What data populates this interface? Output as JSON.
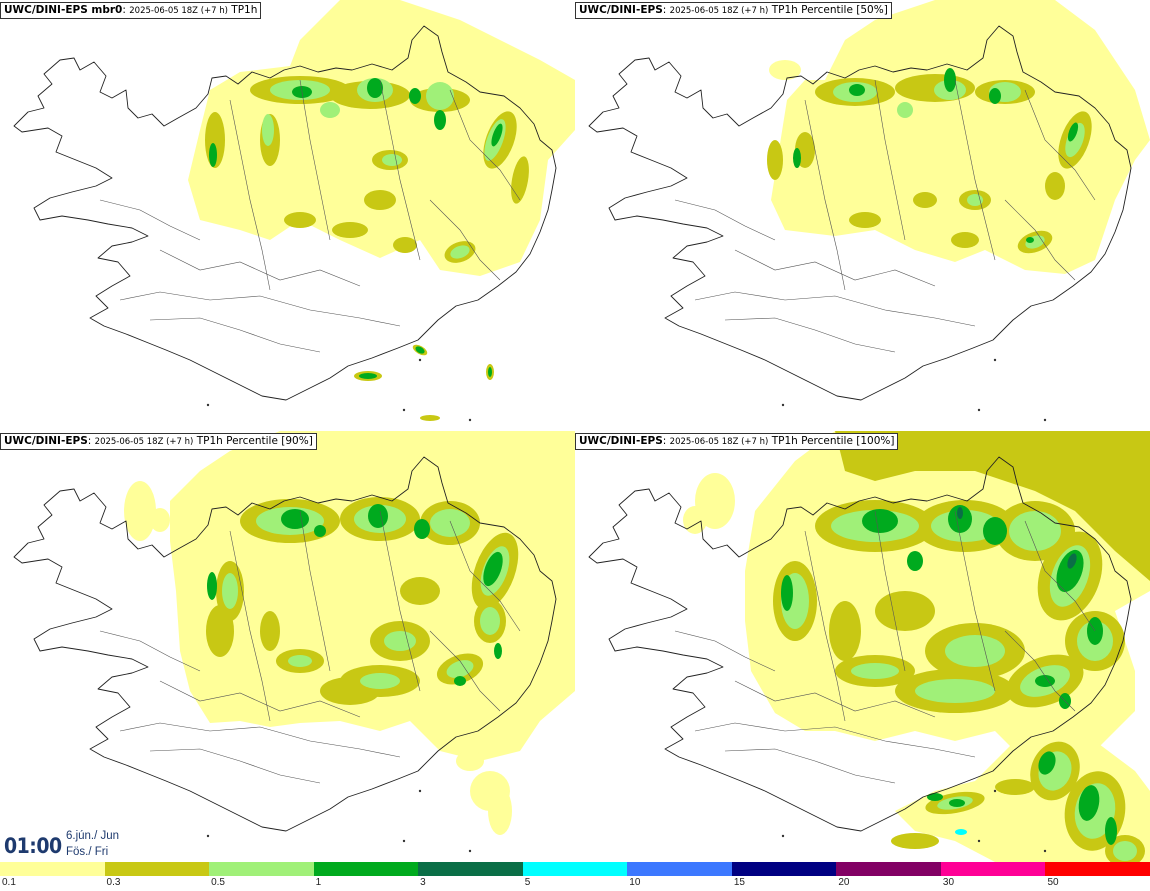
{
  "panels": [
    {
      "model": "UWC/DINI-EPS mbr0",
      "run": "2025-06-05 18Z (+7 h)",
      "field": "TP1h"
    },
    {
      "model": "UWC/DINI-EPS",
      "run": "2025-06-05 18Z (+7 h)",
      "field": "TP1h Percentile [50%]"
    },
    {
      "model": "UWC/DINI-EPS",
      "run": "2025-06-05 18Z (+7 h)",
      "field": "TP1h Percentile [90%]"
    },
    {
      "model": "UWC/DINI-EPS",
      "run": "2025-06-05 18Z (+7 h)",
      "field": "TP1h Percentile [100%]"
    }
  ],
  "valid_time": {
    "time": "01:00",
    "date_line1": "6.jún./ Jun",
    "date_line2": "Fös./ Fri"
  },
  "legend": {
    "labels": [
      "0.1",
      "0.3",
      "0.5",
      "1",
      "3",
      "5",
      "10",
      "15",
      "20",
      "30",
      "50"
    ],
    "colors": [
      "#ffff99",
      "#c8c814",
      "#a0f078",
      "#00aa1e",
      "#0a6e46",
      "#00ffff",
      "#3c78ff",
      "#000082",
      "#820064",
      "#ff0096",
      "#ff0000"
    ]
  },
  "colors": {
    "land_bg": "#ffffff",
    "coast": "#222222"
  }
}
